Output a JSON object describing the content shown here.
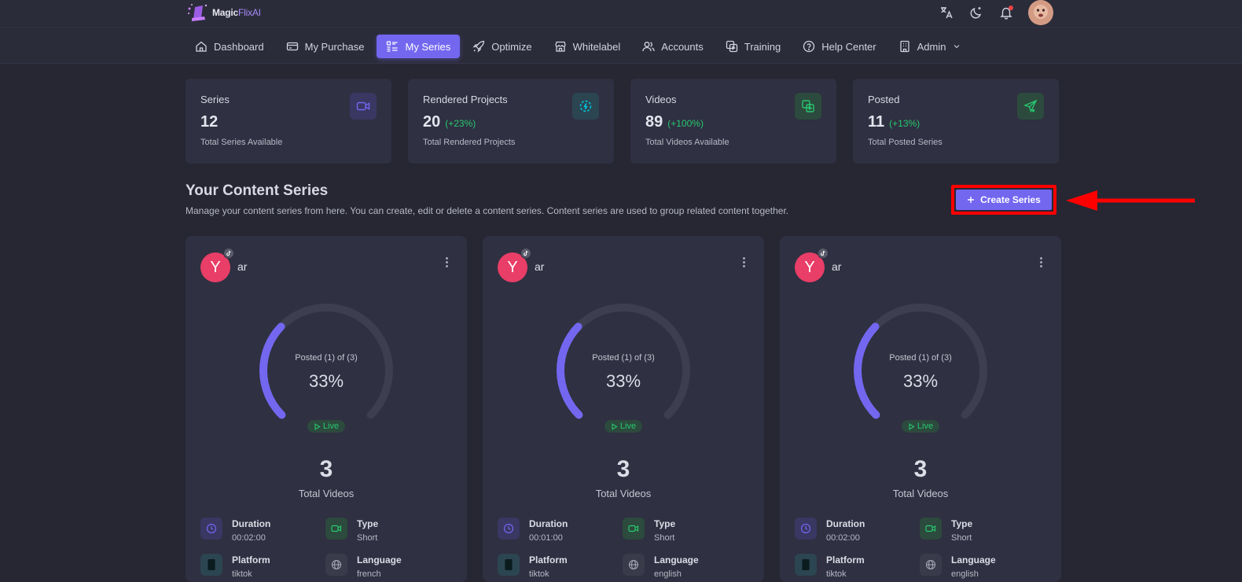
{
  "brand": {
    "name_main": "Magic",
    "name_accent": "FlixAI"
  },
  "topbar": {
    "icons": [
      "translate-icon",
      "moon-icon",
      "bell-icon",
      "avatar"
    ]
  },
  "nav": [
    {
      "label": "Dashboard",
      "icon": "home-icon",
      "active": false
    },
    {
      "label": "My Purchase",
      "icon": "card-icon",
      "active": false
    },
    {
      "label": "My Series",
      "icon": "list-icon",
      "active": true
    },
    {
      "label": "Optimize",
      "icon": "rocket-icon",
      "active": false
    },
    {
      "label": "Whitelabel",
      "icon": "store-icon",
      "active": false
    },
    {
      "label": "Accounts",
      "icon": "users-icon",
      "active": false
    },
    {
      "label": "Training",
      "icon": "copy-icon",
      "active": false
    },
    {
      "label": "Help Center",
      "icon": "help-icon",
      "active": false
    },
    {
      "label": "Admin",
      "icon": "building-icon",
      "active": false
    }
  ],
  "stats": [
    {
      "title": "Series",
      "value": "12",
      "change": "",
      "sub": "Total Series Available",
      "icon": "video-icon",
      "color": "#7367f0"
    },
    {
      "title": "Rendered Projects",
      "value": "20",
      "change": "(+23%)",
      "sub": "Total Rendered Projects",
      "icon": "render-icon",
      "color": "#00cfe8"
    },
    {
      "title": "Videos",
      "value": "89",
      "change": "(+100%)",
      "sub": "Total Videos Available",
      "icon": "copy-icon",
      "color": "#28c76f"
    },
    {
      "title": "Posted",
      "value": "11",
      "change": "(+13%)",
      "sub": "Total Posted Series",
      "icon": "send-icon",
      "color": "#28c76f"
    }
  ],
  "section": {
    "title": "Your Content Series",
    "description": "Manage your content series from here. You can create, edit or delete a content series. Content series are used to group related content together.",
    "create_button": "Create Series"
  },
  "cards": [
    {
      "initial": "Y",
      "name": "ar",
      "gauge_label": "Posted (1) of (3)",
      "percent": "33%",
      "progress": 0.33,
      "status": "Live",
      "total": "3",
      "total_label": "Total Videos",
      "duration_label": "Duration",
      "duration": "00:02:00",
      "type_label": "Type",
      "type": "Short",
      "platform_label": "Platform",
      "platform": "tiktok",
      "language_label": "Language",
      "language": "french"
    },
    {
      "initial": "Y",
      "name": "ar",
      "gauge_label": "Posted (1) of (3)",
      "percent": "33%",
      "progress": 0.33,
      "status": "Live",
      "total": "3",
      "total_label": "Total Videos",
      "duration_label": "Duration",
      "duration": "00:01:00",
      "type_label": "Type",
      "type": "Short",
      "platform_label": "Platform",
      "platform": "tiktok",
      "language_label": "Language",
      "language": "english"
    },
    {
      "initial": "Y",
      "name": "ar",
      "gauge_label": "Posted (1) of (3)",
      "percent": "33%",
      "progress": 0.33,
      "status": "Live",
      "total": "3",
      "total_label": "Total Videos",
      "duration_label": "Duration",
      "duration": "00:02:00",
      "type_label": "Type",
      "type": "Short",
      "platform_label": "Platform",
      "platform": "tiktok",
      "language_label": "Language",
      "language": "english"
    }
  ],
  "colors": {
    "accent": "#7367f0",
    "success": "#28c76f",
    "highlight": "#ff0000",
    "avatar": "#e83e67"
  }
}
